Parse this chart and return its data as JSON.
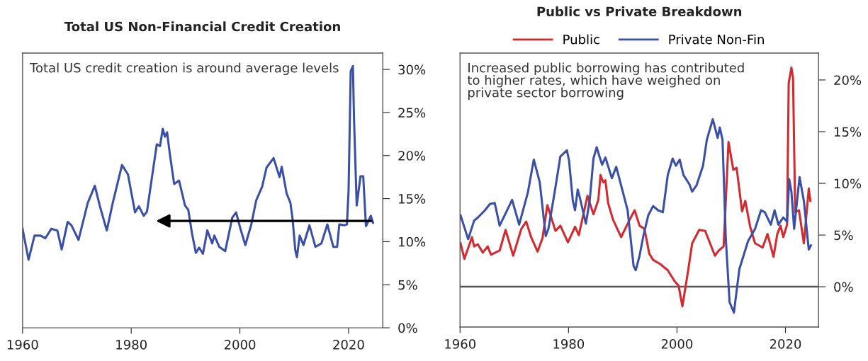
{
  "chart_data": [
    {
      "type": "line",
      "title": "Total US Non-Financial Credit Creation",
      "annotations": [
        "Total US credit creation is around average levels"
      ],
      "xlim": [
        1960,
        2026.3
      ],
      "ylim": [
        0,
        31.9
      ],
      "xticks": [
        1960,
        1980,
        2000,
        2020
      ],
      "yticks": [
        {
          "value": 0,
          "label": "0%"
        },
        {
          "value": 5,
          "label": "5%"
        },
        {
          "value": 10,
          "label": "10%"
        },
        {
          "value": 15,
          "label": "15%"
        },
        {
          "value": 20,
          "label": "20%"
        },
        {
          "value": 25,
          "label": "25%"
        },
        {
          "value": 30,
          "label": "30%"
        }
      ],
      "grid": false,
      "legend": false,
      "series": [
        {
          "color": "#3a4fa8",
          "x": [
            1960,
            1961.1,
            1962.2,
            1963.3,
            1964.2,
            1965.3,
            1966.4,
            1967.2,
            1968.3,
            1969,
            1970.3,
            1972,
            1973.3,
            1974.2,
            1975.5,
            1976.6,
            1978.3,
            1979.4,
            1980.7,
            1981.4,
            1982.3,
            1982.9,
            1984.7,
            1985.3,
            1985.8,
            1986.2,
            1986.6,
            1987.1,
            1987.9,
            1988.8,
            1989.9,
            1990.5,
            1991.2,
            1991.9,
            1992.5,
            1993.2,
            1994,
            1994.9,
            1995.3,
            1996.2,
            1997.3,
            1998.6,
            1999.3,
            2000.1,
            2001,
            2002.1,
            2003,
            2004.1,
            2004.9,
            2006.2,
            2007.3,
            2007.7,
            2008.6,
            2009.3,
            2009.7,
            2010.2,
            2010.5,
            2011,
            2011.7,
            2012.8,
            2013.9,
            2015,
            2016.1,
            2017.2,
            2017.9,
            2018.3,
            2019.2,
            2019.7,
            2020,
            2020.4,
            2020.8,
            2021,
            2021.5,
            2022.2,
            2022.7,
            2023.2,
            2024.1,
            2024.5
          ],
          "values": [
            11.5,
            7.9,
            10.7,
            10.7,
            10.4,
            11.5,
            11.3,
            9.1,
            12.3,
            11.9,
            10.2,
            14.5,
            16.5,
            14.2,
            11.3,
            14.5,
            18.9,
            17.8,
            13.4,
            14.1,
            13.0,
            13.5,
            21.3,
            21.1,
            23.1,
            22.2,
            22.7,
            20.2,
            16.7,
            17.1,
            14.2,
            13.7,
            10.9,
            8.7,
            9.3,
            8.6,
            11.3,
            9.8,
            10.7,
            9.4,
            8.9,
            12.8,
            13.4,
            11.5,
            9.6,
            12.0,
            14.8,
            16.4,
            18.6,
            19.7,
            17.5,
            18.7,
            15.6,
            14.5,
            12.6,
            9.0,
            8.2,
            10.7,
            9.6,
            11.9,
            9.4,
            9.8,
            12.0,
            9.4,
            9.4,
            12.0,
            11.9,
            12.0,
            15.9,
            29.8,
            30.4,
            24.4,
            14.2,
            17.6,
            17.6,
            11.8,
            13.0,
            12.2
          ]
        }
      ]
    },
    {
      "type": "line",
      "title": "Public vs Private Breakdown",
      "annotations": [
        "Increased public borrowing has contributed\nto higher rates, which have weighed on\nprivate sector borrowing"
      ],
      "xlim": [
        1960,
        2026.1
      ],
      "ylim": [
        -3.9,
        22.6
      ],
      "xticks": [
        1960,
        1980,
        2000,
        2020
      ],
      "yticks": [
        {
          "value": 0,
          "label": "0%"
        },
        {
          "value": 5,
          "label": "5%"
        },
        {
          "value": 10,
          "label": "10%"
        },
        {
          "value": 15,
          "label": "15%"
        },
        {
          "value": 20,
          "label": "20%"
        }
      ],
      "grid": false,
      "legend": "top",
      "ref_lines": [
        {
          "axis": "y",
          "value": 0,
          "color": "#555555"
        }
      ],
      "series": [
        {
          "name": "Public",
          "color": "#d42a2f",
          "x": [
            1960.1,
            1960.8,
            1962.2,
            1962.6,
            1963.3,
            1964.2,
            1965.1,
            1965.7,
            1967.3,
            1968.4,
            1969.8,
            1971.3,
            1972.2,
            1973.1,
            1974.3,
            1975.2,
            1976.1,
            1977.6,
            1978.5,
            1979.9,
            1981.2,
            1981.9,
            1983.5,
            1984.6,
            1985.5,
            1985.9,
            1986.4,
            1986.8,
            1987.3,
            1988.2,
            1989.7,
            1991.1,
            1992.2,
            1993.1,
            1994,
            1994.9,
            1995.6,
            1996.9,
            1998.3,
            1999.6,
            2000.3,
            2001,
            2002.1,
            2002.8,
            2004.1,
            2005.2,
            2006.1,
            2007,
            2007.7,
            2008.6,
            2009,
            2009.5,
            2010.4,
            2011,
            2012,
            2012.6,
            2013.5,
            2014.4,
            2015.8,
            2016.7,
            2017.8,
            2018.5,
            2019.1,
            2019.6,
            2020.3,
            2020.6,
            2021.1,
            2021.4,
            2021.8,
            2022.5,
            2023.4,
            2024.3,
            2024.6
          ],
          "values": [
            4.2,
            2.7,
            4.8,
            3.9,
            4.1,
            3.3,
            3.9,
            3.1,
            3.5,
            5.5,
            3.0,
            5.6,
            6.3,
            4.8,
            3.4,
            4.7,
            7.9,
            5.4,
            5.9,
            4.3,
            5.8,
            5.0,
            8.8,
            7.0,
            8.4,
            10.8,
            10.1,
            10.3,
            8.1,
            6.5,
            4.8,
            6.3,
            7.4,
            5.9,
            5.6,
            3.2,
            2.6,
            2.2,
            1.6,
            0.5,
            0.1,
            -1.9,
            1.7,
            4.2,
            5.5,
            5.4,
            4.2,
            3.0,
            3.5,
            3.9,
            8.3,
            14.0,
            11.3,
            11.5,
            7.3,
            8.3,
            5.8,
            4.2,
            3.8,
            5.1,
            2.9,
            5.1,
            5.9,
            4.8,
            6.0,
            19.7,
            21.2,
            20.2,
            7.2,
            7.4,
            4.2,
            9.5,
            8.3
          ]
        },
        {
          "name": "Private Non-Fin",
          "color": "#3a4fa8",
          "x": [
            1960.1,
            1961.5,
            1962.6,
            1963.3,
            1964.6,
            1965.5,
            1966.4,
            1967.3,
            1969.6,
            1970.9,
            1972.5,
            1973.6,
            1974.7,
            1975.8,
            1976.3,
            1977.4,
            1978.5,
            1979.7,
            1980.1,
            1980.8,
            1981.2,
            1981.7,
            1982.1,
            1983.2,
            1983.9,
            1984.6,
            1985.2,
            1985.7,
            1986.2,
            1986.8,
            1988,
            1988.8,
            1990,
            1990.9,
            1992,
            1992.4,
            1993.1,
            1993.8,
            1994.7,
            1995.6,
            1996.5,
            1997.4,
            1998.3,
            1999.2,
            1999.8,
            2000.5,
            2001.2,
            2002.3,
            2002.8,
            2003.6,
            2004.8,
            2005.5,
            2006.6,
            2007.5,
            2007.9,
            2008.4,
            2009,
            2009.7,
            2010.5,
            2011.5,
            2013.1,
            2014.4,
            2015.5,
            2016.2,
            2017.3,
            2018,
            2018.7,
            2019.6,
            2020.3,
            2020.7,
            2021.1,
            2021.6,
            2022.6,
            2023.4,
            2024.3,
            2024.7
          ],
          "values": [
            6.9,
            4.6,
            6.4,
            6.7,
            7.4,
            8.0,
            8.1,
            5.9,
            8.4,
            6.0,
            9.1,
            12.3,
            10.1,
            4.9,
            5.6,
            9.0,
            12.6,
            13.2,
            12.2,
            8.3,
            7.4,
            9.4,
            8.6,
            6.1,
            8.3,
            12.4,
            13.5,
            12.6,
            11.8,
            12.5,
            10.5,
            11.6,
            9.2,
            7.4,
            2.0,
            1.6,
            3.0,
            4.9,
            6.9,
            7.8,
            7.4,
            7.2,
            10.8,
            12.4,
            11.7,
            12.3,
            10.8,
            9.9,
            9.2,
            9.8,
            11.7,
            14.2,
            16.2,
            14.4,
            15.4,
            14.2,
            4.7,
            -1.5,
            -2.5,
            1.7,
            4.4,
            5.6,
            7.4,
            7.2,
            6.0,
            7.4,
            6.0,
            6.7,
            6.3,
            10.4,
            9.2,
            5.6,
            10.6,
            8.3,
            3.6,
            4.0
          ]
        }
      ]
    }
  ]
}
